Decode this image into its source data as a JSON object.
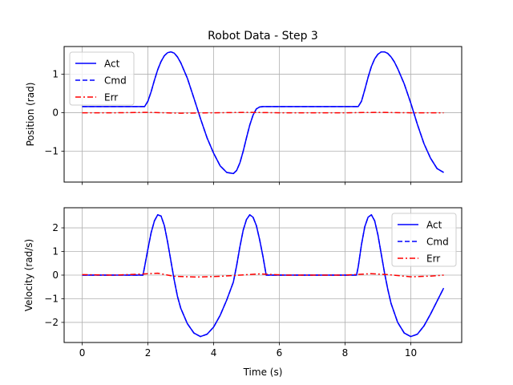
{
  "chart_data": [
    {
      "type": "line",
      "title": "Robot Data - Step 3",
      "xlabel": "",
      "ylabel": "Position (rad)",
      "xlim": [
        -0.55,
        11.55
      ],
      "ylim": [
        -1.8,
        1.72
      ],
      "xticks": [
        0,
        2,
        4,
        6,
        8,
        10
      ],
      "xtick_labels": [
        "",
        "",
        "",
        "",
        "",
        ""
      ],
      "yticks": [
        -1,
        0,
        1
      ],
      "ytick_labels": [
        "−1",
        "0",
        "1"
      ],
      "grid": true,
      "legend_position": "top-left",
      "series": [
        {
          "name": "Act",
          "style": "solid",
          "color": "#0000ff",
          "x": [
            0,
            1.9,
            2.0,
            2.1,
            2.2,
            2.3,
            2.4,
            2.5,
            2.6,
            2.7,
            2.8,
            2.9,
            3.0,
            3.2,
            3.4,
            3.6,
            3.8,
            4.0,
            4.2,
            4.4,
            4.6,
            4.7,
            4.8,
            4.9,
            5.0,
            5.1,
            5.2,
            5.3,
            5.4,
            5.5,
            5.6,
            8.4,
            8.5,
            8.6,
            8.7,
            8.8,
            8.9,
            9.0,
            9.1,
            9.2,
            9.3,
            9.4,
            9.5,
            9.6,
            9.8,
            10.0,
            10.2,
            10.4,
            10.6,
            10.8,
            11.0
          ],
          "y": [
            0.16,
            0.16,
            0.3,
            0.55,
            0.85,
            1.12,
            1.33,
            1.48,
            1.56,
            1.58,
            1.55,
            1.45,
            1.3,
            0.9,
            0.38,
            -0.15,
            -0.65,
            -1.05,
            -1.38,
            -1.55,
            -1.58,
            -1.5,
            -1.3,
            -1.0,
            -0.65,
            -0.32,
            -0.06,
            0.1,
            0.15,
            0.16,
            0.16,
            0.16,
            0.3,
            0.6,
            0.92,
            1.2,
            1.4,
            1.52,
            1.58,
            1.58,
            1.54,
            1.45,
            1.32,
            1.15,
            0.75,
            0.25,
            -0.3,
            -0.8,
            -1.18,
            -1.45,
            -1.55
          ]
        },
        {
          "name": "Cmd",
          "style": "dashed",
          "color": "#0000ff",
          "x": [
            0,
            1.9,
            2.0,
            2.1,
            2.2,
            2.3,
            2.4,
            2.5,
            2.6,
            2.7,
            2.8,
            2.9,
            3.0,
            3.2,
            3.4,
            3.6,
            3.8,
            4.0,
            4.2,
            4.4,
            4.6,
            4.7,
            4.8,
            4.9,
            5.0,
            5.1,
            5.2,
            5.3,
            5.4,
            5.5,
            5.6,
            8.4,
            8.5,
            8.6,
            8.7,
            8.8,
            8.9,
            9.0,
            9.1,
            9.2,
            9.3,
            9.4,
            9.5,
            9.6,
            9.8,
            10.0,
            10.2,
            10.4,
            10.6,
            10.8,
            11.0
          ],
          "y": [
            0.16,
            0.16,
            0.3,
            0.55,
            0.85,
            1.12,
            1.33,
            1.48,
            1.56,
            1.58,
            1.55,
            1.45,
            1.3,
            0.9,
            0.38,
            -0.15,
            -0.65,
            -1.05,
            -1.38,
            -1.55,
            -1.58,
            -1.5,
            -1.3,
            -1.0,
            -0.65,
            -0.32,
            -0.06,
            0.1,
            0.15,
            0.16,
            0.16,
            0.16,
            0.3,
            0.6,
            0.92,
            1.2,
            1.4,
            1.52,
            1.58,
            1.58,
            1.54,
            1.45,
            1.32,
            1.15,
            0.75,
            0.25,
            -0.3,
            -0.8,
            -1.18,
            -1.45,
            -1.55
          ]
        },
        {
          "name": "Err",
          "style": "dashdot",
          "color": "#ff0000",
          "x": [
            0,
            1,
            2,
            3,
            4,
            5,
            6,
            7,
            8,
            9,
            10,
            11
          ],
          "y": [
            0.0,
            0.0,
            0.01,
            -0.01,
            0.0,
            0.01,
            0.0,
            0.0,
            0.0,
            0.01,
            0.0,
            0.0
          ]
        }
      ]
    },
    {
      "type": "line",
      "title": "",
      "xlabel": "Time (s)",
      "ylabel": "Velocity (rad/s)",
      "xlim": [
        -0.55,
        11.55
      ],
      "ylim": [
        -2.85,
        2.85
      ],
      "xticks": [
        0,
        2,
        4,
        6,
        8,
        10
      ],
      "xtick_labels": [
        "0",
        "2",
        "4",
        "6",
        "8",
        "10"
      ],
      "yticks": [
        -2,
        -1,
        0,
        1,
        2
      ],
      "ytick_labels": [
        "−2",
        "−1",
        "0",
        "1",
        "2"
      ],
      "grid": true,
      "legend_position": "top-right",
      "series": [
        {
          "name": "Act",
          "style": "solid",
          "color": "#0000ff",
          "x": [
            0,
            1.85,
            1.9,
            2.0,
            2.1,
            2.2,
            2.3,
            2.4,
            2.5,
            2.6,
            2.7,
            2.8,
            2.9,
            3.0,
            3.2,
            3.4,
            3.6,
            3.8,
            4.0,
            4.2,
            4.4,
            4.6,
            4.7,
            4.8,
            4.9,
            5.0,
            5.1,
            5.2,
            5.3,
            5.4,
            5.5,
            5.6,
            8.35,
            8.4,
            8.5,
            8.6,
            8.7,
            8.8,
            8.9,
            9.0,
            9.1,
            9.2,
            9.3,
            9.4,
            9.6,
            9.8,
            10.0,
            10.2,
            10.4,
            10.6,
            10.8,
            11.0
          ],
          "y": [
            0.0,
            0.0,
            0.35,
            1.1,
            1.8,
            2.3,
            2.55,
            2.5,
            2.1,
            1.4,
            0.6,
            -0.2,
            -0.9,
            -1.4,
            -2.05,
            -2.45,
            -2.6,
            -2.5,
            -2.2,
            -1.7,
            -1.05,
            -0.3,
            0.4,
            1.2,
            1.9,
            2.35,
            2.55,
            2.45,
            2.1,
            1.5,
            0.8,
            0.0,
            0.0,
            0.35,
            1.3,
            2.05,
            2.45,
            2.55,
            2.3,
            1.7,
            0.9,
            0.1,
            -0.6,
            -1.2,
            -2.0,
            -2.45,
            -2.6,
            -2.5,
            -2.15,
            -1.65,
            -1.1,
            -0.55
          ]
        },
        {
          "name": "Cmd",
          "style": "dashed",
          "color": "#0000ff",
          "x": [
            0,
            1.85,
            1.9,
            2.0,
            2.1,
            2.2,
            2.3,
            2.4,
            2.5,
            2.6,
            2.7,
            2.8,
            2.9,
            3.0,
            3.2,
            3.4,
            3.6,
            3.8,
            4.0,
            4.2,
            4.4,
            4.6,
            4.7,
            4.8,
            4.9,
            5.0,
            5.1,
            5.2,
            5.3,
            5.4,
            5.5,
            5.6,
            8.35,
            8.4,
            8.5,
            8.6,
            8.7,
            8.8,
            8.9,
            9.0,
            9.1,
            9.2,
            9.3,
            9.4,
            9.6,
            9.8,
            10.0,
            10.2,
            10.4,
            10.6,
            10.8,
            11.0
          ],
          "y": [
            0.0,
            0.0,
            0.35,
            1.1,
            1.8,
            2.3,
            2.55,
            2.5,
            2.1,
            1.4,
            0.6,
            -0.2,
            -0.9,
            -1.4,
            -2.05,
            -2.45,
            -2.6,
            -2.5,
            -2.2,
            -1.7,
            -1.05,
            -0.3,
            0.4,
            1.2,
            1.9,
            2.35,
            2.55,
            2.45,
            2.1,
            1.5,
            0.8,
            0.0,
            0.0,
            0.35,
            1.3,
            2.05,
            2.45,
            2.55,
            2.3,
            1.7,
            0.9,
            0.1,
            -0.6,
            -1.2,
            -2.0,
            -2.45,
            -2.6,
            -2.5,
            -2.15,
            -1.65,
            -1.1,
            -0.55
          ]
        },
        {
          "name": "Err",
          "style": "dashdot",
          "color": "#ff0000",
          "x": [
            0,
            1,
            1.9,
            2.3,
            2.8,
            3.5,
            4.2,
            4.8,
            5.4,
            6.2,
            7.0,
            8.0,
            8.8,
            9.3,
            10.0,
            10.6,
            11.0
          ],
          "y": [
            0.02,
            0.0,
            0.05,
            0.08,
            -0.05,
            -0.08,
            -0.05,
            0.0,
            0.05,
            0.0,
            0.0,
            0.0,
            0.06,
            0.02,
            -0.07,
            -0.04,
            0.0
          ]
        }
      ]
    }
  ]
}
